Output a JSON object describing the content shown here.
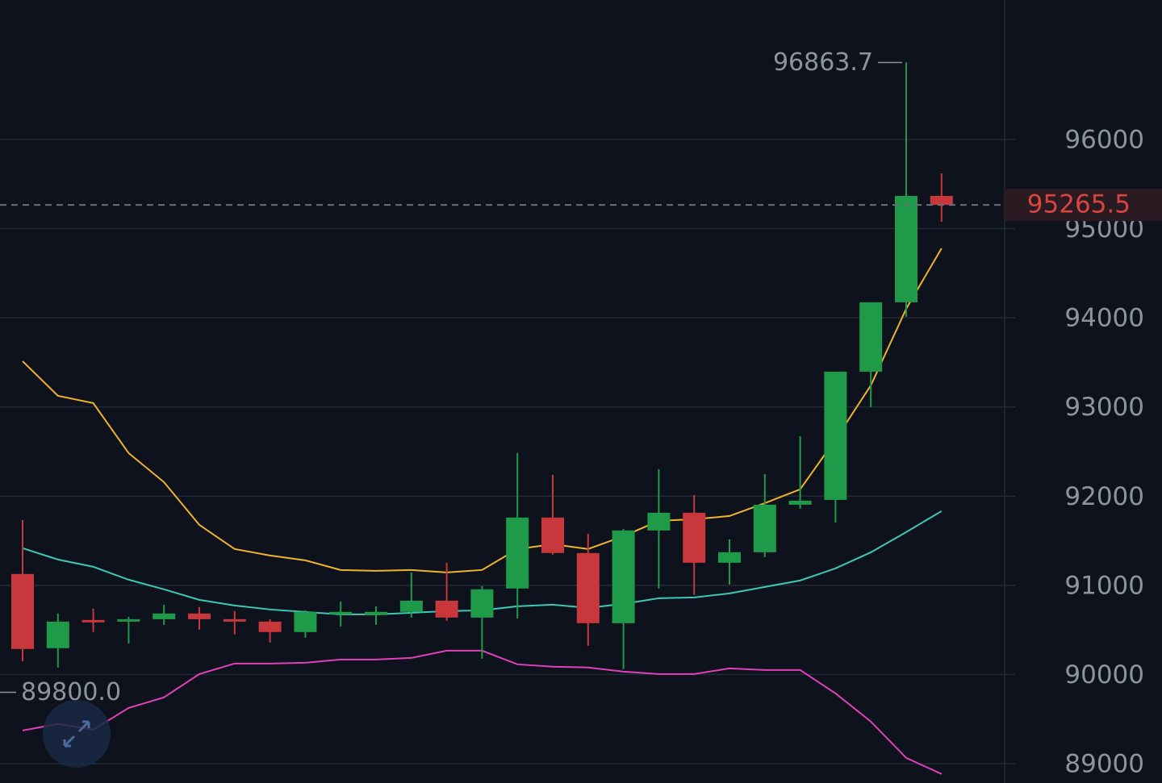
{
  "chart_data": {
    "type": "candlestick",
    "ylim": [
      88783,
      97564
    ],
    "yticks": [
      89000,
      90000,
      91000,
      92000,
      93000,
      94000,
      95000,
      96000
    ],
    "grid": true,
    "up_color": "#1f9a48",
    "down_color": "#c8373b",
    "open": [
      91127,
      90295,
      90611,
      90593,
      90620,
      90684,
      90620,
      90593,
      90476,
      90675,
      90666,
      90702,
      90828,
      90638,
      90964,
      91760,
      91362,
      90575,
      91615,
      91814,
      91253,
      91371,
      91904,
      91958,
      93396,
      94174,
      95367
    ],
    "high": [
      91732,
      90684,
      90738,
      90647,
      90783,
      90756,
      90711,
      90620,
      90720,
      90819,
      90765,
      91145,
      91253,
      90991,
      92483,
      92239,
      91579,
      91633,
      92302,
      92013,
      91515,
      92248,
      92673,
      93396,
      94174,
      96863.7,
      95620
    ],
    "low": [
      90150,
      90078,
      90476,
      90349,
      90557,
      90503,
      90449,
      90358,
      90412,
      90539,
      90557,
      90638,
      90602,
      90177,
      90629,
      91344,
      90322,
      90060,
      90964,
      90892,
      91009,
      91316,
      91859,
      91705,
      92998,
      94011,
      95078
    ],
    "close": [
      90286,
      90593,
      90593,
      90620,
      90684,
      90620,
      90593,
      90476,
      90702,
      90702,
      90702,
      90828,
      90638,
      90955,
      91760,
      91362,
      90575,
      91615,
      91814,
      91253,
      91371,
      91904,
      91949,
      93396,
      94174,
      95367,
      95265.5
    ],
    "lines": [
      {
        "color": "#f0b429",
        "values": [
          93513,
          93125,
          93043,
          92483,
          92157,
          91678,
          91407,
          91334,
          91280,
          91172,
          91163,
          91172,
          91144,
          91172,
          91407,
          91461,
          91407,
          91551,
          91723,
          91741,
          91777,
          91922,
          92076,
          92636,
          93242,
          94101,
          94779
        ]
      },
      {
        "color": "#3cc8b4",
        "values": [
          91416,
          91289,
          91208,
          91063,
          90955,
          90837,
          90774,
          90729,
          90701,
          90674,
          90674,
          90692,
          90710,
          90719,
          90765,
          90783,
          90747,
          90792,
          90855,
          90864,
          90909,
          90982,
          91054,
          91190,
          91370,
          91597,
          91832
        ]
      },
      {
        "color": "#e040b8",
        "values": [
          89372,
          89445,
          89381,
          89625,
          89743,
          90005,
          90123,
          90123,
          90132,
          90168,
          90168,
          90186,
          90267,
          90267,
          90114,
          90087,
          90078,
          90032,
          90005,
          90005,
          90068,
          90050,
          90050,
          89788,
          89472,
          89065,
          88884
        ]
      }
    ],
    "annotations": [
      {
        "value": 96863.7,
        "label": "96863.7"
      },
      {
        "value": 89800,
        "label": "89800.0"
      }
    ],
    "last_price": 95265.5,
    "last_price_color": "#d8453f"
  }
}
